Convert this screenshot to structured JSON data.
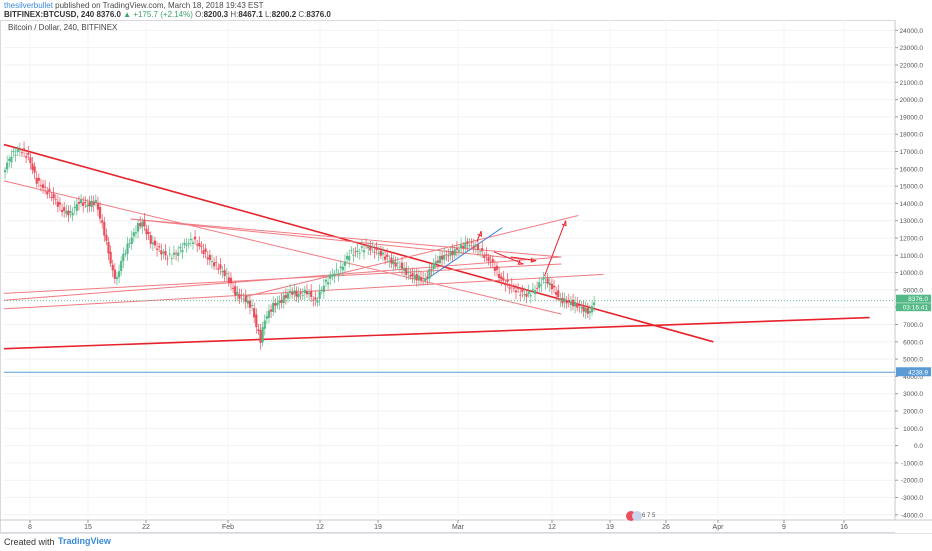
{
  "header": {
    "user": "thesilverbullet",
    "published": " published on TradingView.com, March 18, 2018 19:43 EST",
    "symbol": "BITFINEX:BTCUSD, 240",
    "last": "8376.0",
    "change": "▲ +175.7 (+2.14%)",
    "o_label": "O:",
    "o": "8200.3",
    "h_label": "H:",
    "h": "8467.1",
    "l_label": "L:",
    "l": "8200.2",
    "c_label": "C:",
    "c": "8376.0"
  },
  "footer": {
    "created": "Created with",
    "brand": "TradingView"
  },
  "colors": {
    "up": "#53b987",
    "down": "#eb4d5c",
    "trend": "#e8222c",
    "thin": "#f07b82",
    "blue": "#2e7fd6",
    "marker": "#5b9bd5",
    "price_tag": "#53b987"
  },
  "chart_data": {
    "type": "line",
    "title": "Bitcoin / Dollar, 240, BITFINEX",
    "ylim": [
      -4300,
      24600
    ],
    "y_ticks": [
      "24000.0",
      "23000.0",
      "22000.0",
      "21000.0",
      "20000.0",
      "19000.0",
      "18000.0",
      "17000.0",
      "16000.0",
      "15000.0",
      "14000.0",
      "13000.0",
      "12000.0",
      "11000.0",
      "10000.0",
      "9000.0",
      "8000.0",
      "7000.0",
      "6000.0",
      "5000.0",
      "4000.0",
      "3000.0",
      "2000.0",
      "1000.0",
      "0.0",
      "-1000.0",
      "-2000.0",
      "-3000.0",
      "-4000.0"
    ],
    "x_ticks": [
      "8",
      "15",
      "22",
      "Feb",
      "12",
      "19",
      "Mar",
      "12",
      "19",
      "26",
      "Apr",
      "9",
      "16"
    ],
    "last_price_label": "8376.0",
    "countdown_label": "03:16:41",
    "horizontal_label": "4238.9",
    "horizontal_value": 4238.9,
    "events_label": "6  7  5",
    "series": [
      {
        "values": [
          [
            0,
            15800
          ],
          [
            2,
            16800
          ],
          [
            4,
            17100
          ],
          [
            6,
            16700
          ],
          [
            8,
            15300
          ],
          [
            10,
            14800
          ],
          [
            12,
            14300
          ],
          [
            14,
            13600
          ],
          [
            16,
            13400
          ],
          [
            18,
            14100
          ],
          [
            20,
            13900
          ],
          [
            22,
            14100
          ],
          [
            24,
            12300
          ],
          [
            26,
            10000
          ],
          [
            27,
            9600
          ],
          [
            28,
            10700
          ],
          [
            30,
            11800
          ],
          [
            32,
            12700
          ],
          [
            33,
            12900
          ],
          [
            35,
            11800
          ],
          [
            37,
            11300
          ],
          [
            39,
            10900
          ],
          [
            41,
            11100
          ],
          [
            43,
            11600
          ],
          [
            45,
            11900
          ],
          [
            47,
            11400
          ],
          [
            49,
            10700
          ],
          [
            51,
            10300
          ],
          [
            53,
            9800
          ],
          [
            55,
            8800
          ],
          [
            57,
            8500
          ],
          [
            59,
            8000
          ],
          [
            60,
            6900
          ],
          [
            61,
            6100
          ],
          [
            62,
            7300
          ],
          [
            64,
            8100
          ],
          [
            66,
            8400
          ],
          [
            68,
            8900
          ],
          [
            70,
            8700
          ],
          [
            72,
            8900
          ],
          [
            74,
            8300
          ],
          [
            76,
            9300
          ],
          [
            78,
            9900
          ],
          [
            80,
            10200
          ],
          [
            82,
            11100
          ],
          [
            84,
            11200
          ],
          [
            86,
            11500
          ],
          [
            88,
            11300
          ],
          [
            90,
            11000
          ],
          [
            92,
            10600
          ],
          [
            94,
            10400
          ],
          [
            96,
            9900
          ],
          [
            98,
            9700
          ],
          [
            100,
            9600
          ],
          [
            102,
            10500
          ],
          [
            104,
            10900
          ],
          [
            106,
            11100
          ],
          [
            108,
            11400
          ],
          [
            110,
            11700
          ],
          [
            112,
            11500
          ],
          [
            114,
            11000
          ],
          [
            116,
            10500
          ],
          [
            117,
            10000
          ],
          [
            118,
            9600
          ],
          [
            120,
            9200
          ],
          [
            122,
            8900
          ],
          [
            124,
            8700
          ],
          [
            126,
            9000
          ],
          [
            128,
            9600
          ],
          [
            130,
            9200
          ],
          [
            132,
            8400
          ],
          [
            134,
            8300
          ],
          [
            136,
            8100
          ],
          [
            138,
            7800
          ],
          [
            139,
            7700
          ],
          [
            140,
            8376
          ]
        ]
      }
    ],
    "trendlines": [
      {
        "kind": "thick",
        "from": [
          0,
          17400
        ],
        "to": [
          168,
          6000
        ]
      },
      {
        "kind": "thick",
        "from": [
          0,
          5600
        ],
        "to": [
          205,
          7400
        ]
      },
      {
        "kind": "thin",
        "from": [
          0,
          15300
        ],
        "to": [
          132,
          7600
        ]
      },
      {
        "kind": "thin",
        "from": [
          0,
          8800
        ],
        "to": [
          132,
          10500
        ]
      },
      {
        "kind": "thin",
        "from": [
          0,
          7900
        ],
        "to": [
          142,
          9900
        ]
      },
      {
        "kind": "thin",
        "from": [
          0,
          8400
        ],
        "to": [
          132,
          10900
        ]
      },
      {
        "kind": "thin",
        "from": [
          30,
          13100
        ],
        "to": [
          132,
          10900
        ]
      },
      {
        "kind": "thin",
        "from": [
          30,
          13100
        ],
        "to": [
          66,
          12200
        ]
      },
      {
        "kind": "thin",
        "from": [
          66,
          12200
        ],
        "to": [
          126,
          10700
        ]
      },
      {
        "kind": "thin",
        "from": [
          57,
          8600
        ],
        "to": [
          136,
          13300
        ]
      },
      {
        "kind": "blue",
        "from": [
          100,
          9600
        ],
        "to": [
          118,
          12600
        ]
      }
    ],
    "arrows": [
      {
        "from": [
          112,
          11800
        ],
        "to": [
          113,
          12400
        ]
      },
      {
        "from": [
          116,
          11200
        ],
        "to": [
          123,
          10500
        ]
      },
      {
        "from": [
          128,
          9800
        ],
        "to": [
          133,
          13000
        ]
      },
      {
        "from": [
          120,
          10900
        ],
        "to": [
          126,
          10700
        ]
      }
    ]
  }
}
